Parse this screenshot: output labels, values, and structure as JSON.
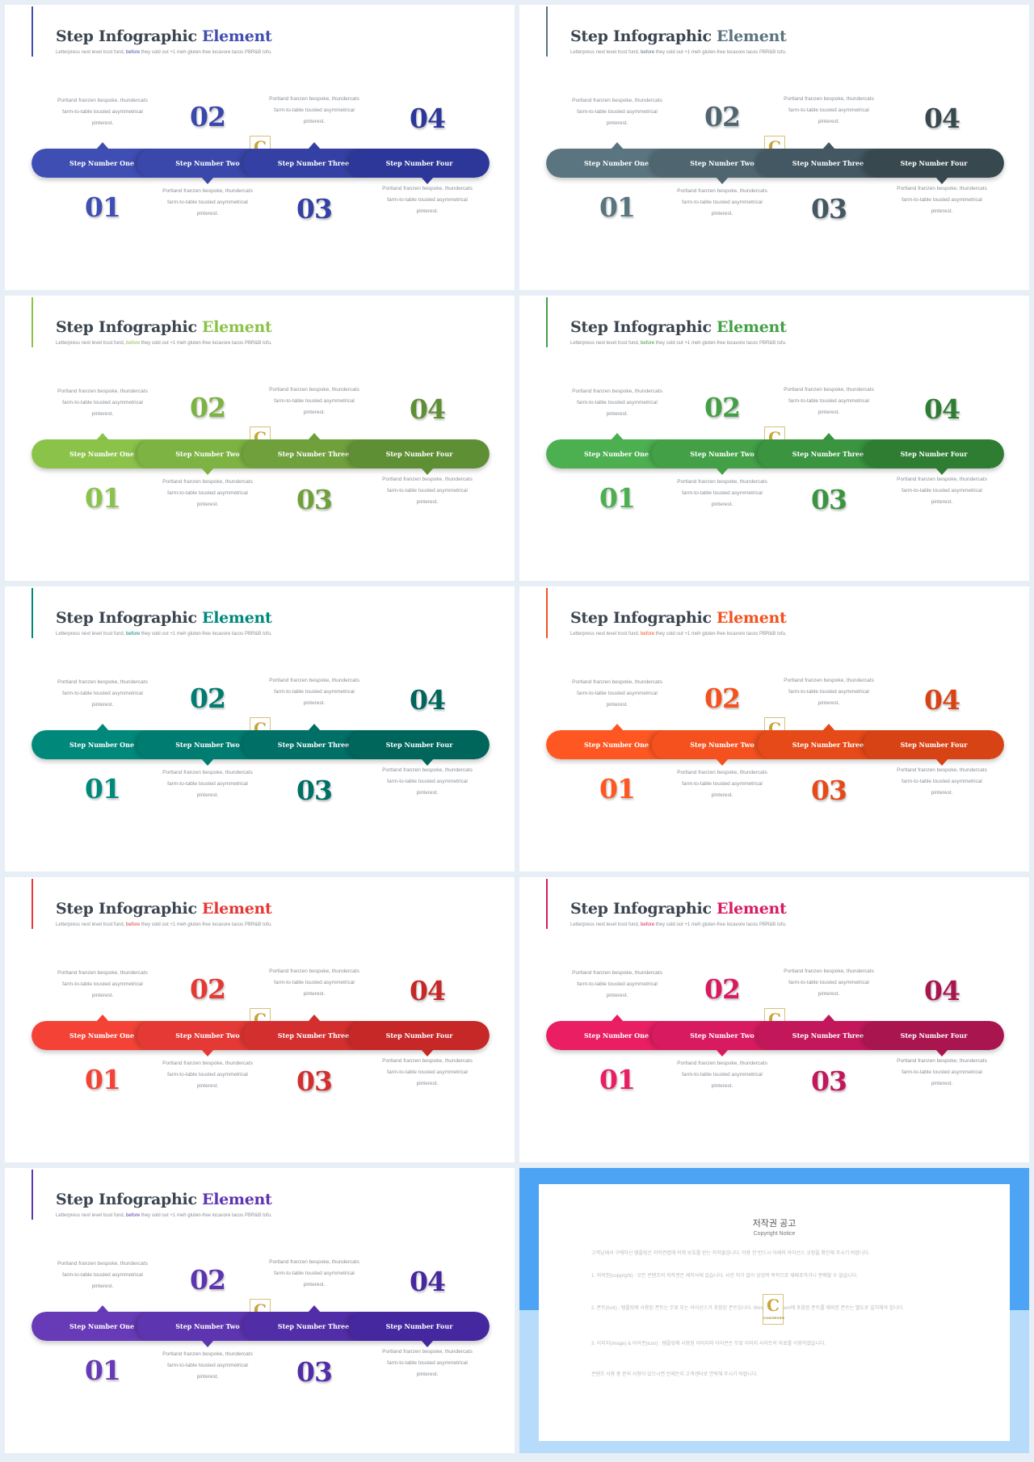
{
  "template": {
    "title_main": "Step Infographic",
    "title_accent": "Element",
    "subtitle_a": "Letterpress next level trust fund, ",
    "subtitle_accent": "before",
    "subtitle_b": " they sold out +1 meh gluten-free locavore tacos PBR&B tofu.",
    "description": "Portland franzen bespoke, thundercats farm-to-table tousled asymmetrical pinterest.",
    "numbers": [
      "01",
      "02",
      "03",
      "04"
    ],
    "steps": [
      "Step Number One",
      "Step Number Two",
      "Step Number Three",
      "Step Number Four"
    ],
    "watermark_letter": "C",
    "watermark_text": "CONTENTS"
  },
  "themes": [
    {
      "accent": "#3f4eb0",
      "segments": [
        "#3f4eb3",
        "#3a47ab",
        "#3440a3",
        "#2d3799"
      ]
    },
    {
      "accent": "#5b7480",
      "segments": [
        "#5a7580",
        "#4f6670",
        "#435862",
        "#37484f"
      ]
    },
    {
      "accent": "#8bc34a",
      "segments": [
        "#8bc34a",
        "#7cb342",
        "#6fa03c",
        "#5f8f34"
      ]
    },
    {
      "accent": "#43a047",
      "segments": [
        "#4caf50",
        "#43a047",
        "#3a9440",
        "#2e7d32"
      ]
    },
    {
      "accent": "#00897b",
      "segments": [
        "#00897b",
        "#007c70",
        "#006f65",
        "#00655b"
      ]
    },
    {
      "accent": "#f4511e",
      "segments": [
        "#ff5722",
        "#f4511e",
        "#e64a19",
        "#d84315"
      ]
    },
    {
      "accent": "#e53935",
      "segments": [
        "#f44336",
        "#e53935",
        "#d32f2f",
        "#c62828"
      ]
    },
    {
      "accent": "#d81b60",
      "segments": [
        "#e91e63",
        "#d81b60",
        "#c2185b",
        "#a8154f"
      ]
    },
    {
      "accent": "#5e35b1",
      "segments": [
        "#673ab7",
        "#5e35b1",
        "#512da8",
        "#4527a0"
      ]
    }
  ],
  "notice": {
    "title": "저작권 공고",
    "subtitle": "Copyright Notice",
    "paragraphs": [
      "고객님께서 구매하신 템플릿은 저작권법에 의해 보호를 받는 저작물입니다. 이용 전 반드시 아래의 라이선스 규정을 확인해 주시기 바랍니다.",
      "1. 저작권(copyright) : 모든 콘텐츠의 저작권은 제작사에 있습니다. 사전 허가 없이 상업적 목적으로 재배포하거나 판매할 수 없습니다.",
      "2. 폰트(font) : 템플릿에 사용된 폰트는 무료 또는 라이선스가 포함된 폰트입니다. Windows System에 포함된 폰트를 제외한 폰트는 별도로 설치해야 합니다.",
      "3. 이미지(image) & 아이콘(icon) : 템플릿에 사용된 이미지와 아이콘은 무료 이미지 사이트의 자료를 이용하였습니다.",
      "콘텐츠 사용 중 문의 사항이 있으시면 언제든지 고객센터로 연락해 주시기 바랍니다."
    ]
  }
}
